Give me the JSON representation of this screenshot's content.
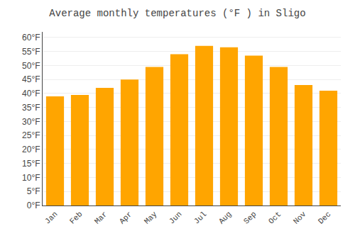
{
  "chart_data": {
    "type": "bar",
    "title": "Average monthly temperatures (°F ) in Sligo",
    "categories": [
      "Jan",
      "Feb",
      "Mar",
      "Apr",
      "May",
      "Jun",
      "Jul",
      "Aug",
      "Sep",
      "Oct",
      "Nov",
      "Dec"
    ],
    "values": [
      39,
      39.5,
      42,
      45,
      49.5,
      54,
      57,
      56.5,
      53.5,
      49.5,
      43,
      41
    ],
    "color": "#FFA500",
    "ylim": [
      0,
      62
    ],
    "yticks": [
      {
        "value": 0,
        "label": "0°F"
      },
      {
        "value": 5,
        "label": "5°F"
      },
      {
        "value": 10,
        "label": "10°F"
      },
      {
        "value": 15,
        "label": "15°F"
      },
      {
        "value": 20,
        "label": "20°F"
      },
      {
        "value": 25,
        "label": "25°F"
      },
      {
        "value": 30,
        "label": "30°F"
      },
      {
        "value": 35,
        "label": "35°F"
      },
      {
        "value": 40,
        "label": "40°F"
      },
      {
        "value": 45,
        "label": "45°F"
      },
      {
        "value": 50,
        "label": "50°F"
      },
      {
        "value": 55,
        "label": "55°F"
      },
      {
        "value": 60,
        "label": "60°F"
      }
    ],
    "grid": true
  }
}
